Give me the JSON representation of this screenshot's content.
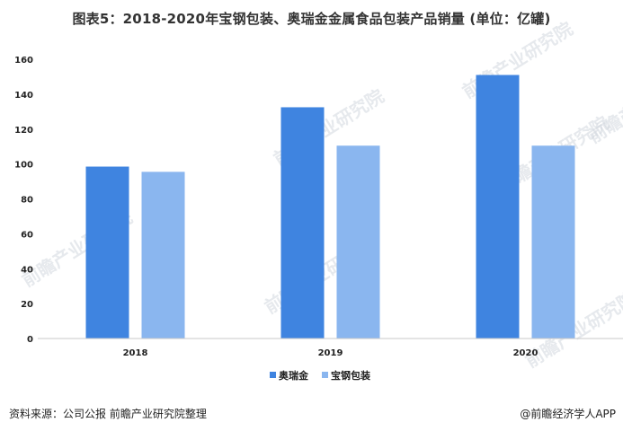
{
  "title": "图表5：2018-2020年宝钢包装、奥瑞金金属食品包装产品销量 (单位：亿罐)",
  "source": "资料来源：公司公报 前瞻产业研究院整理",
  "credit": "@前瞻经济学人APP",
  "watermark": "前瞻产业研究院",
  "chart_data": {
    "type": "bar",
    "categories": [
      "2018",
      "2019",
      "2020"
    ],
    "series": [
      {
        "name": "奥瑞金",
        "values": [
          98.5,
          132.5,
          151
        ],
        "color": "#3f84e0"
      },
      {
        "name": "宝钢包装",
        "values": [
          95.5,
          110.5,
          110.5
        ],
        "color": "#8ab6ef"
      }
    ],
    "yticks": [
      "0",
      "20",
      "40",
      "60",
      "80",
      "100",
      "120",
      "140",
      "160"
    ],
    "ylim": [
      0,
      160
    ],
    "grid": false,
    "legend": "bottom"
  }
}
